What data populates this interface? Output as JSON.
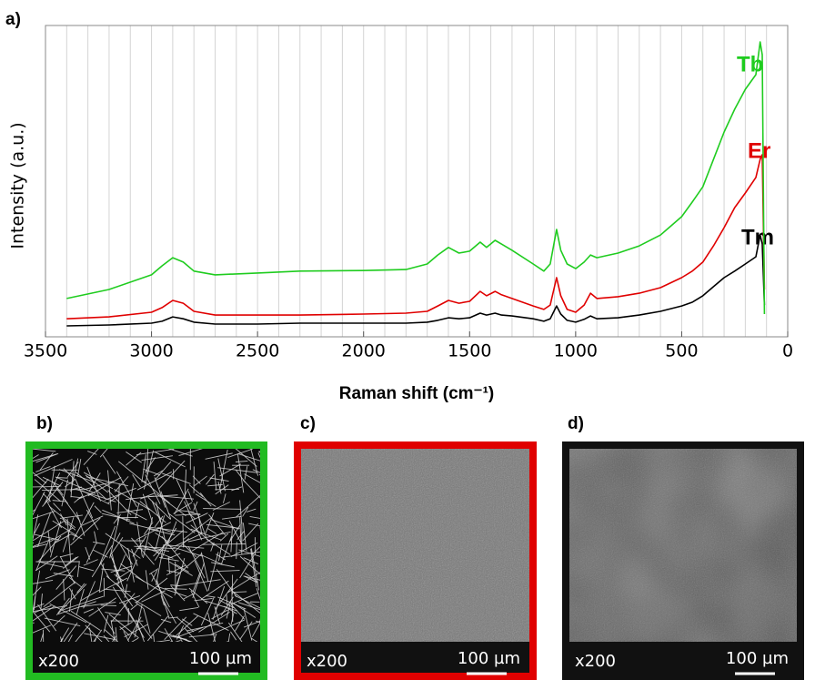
{
  "chart_data": {
    "type": "line",
    "ylabel": "Intensity (a.u.)",
    "xlabel": "Raman shift (cm⁻¹)",
    "xlim": [
      3500,
      0
    ],
    "ylim": [
      0,
      100
    ],
    "xticks": [
      3500,
      3000,
      2500,
      2000,
      1500,
      1000,
      500,
      0
    ],
    "minor_xticks": [
      3400,
      3300,
      3200,
      3100,
      3000,
      2900,
      2800,
      2700,
      2600,
      2500,
      2400,
      2300,
      2200,
      2100,
      2000,
      1900,
      1800,
      1700,
      1600,
      1500,
      1400,
      1300,
      1200,
      1100,
      1000,
      900,
      800,
      700,
      600,
      500,
      400,
      300,
      200,
      100
    ],
    "grid": true,
    "x": [
      3400,
      3200,
      3000,
      2950,
      2900,
      2850,
      2800,
      2700,
      2500,
      2300,
      2000,
      1800,
      1700,
      1650,
      1600,
      1550,
      1500,
      1450,
      1420,
      1380,
      1350,
      1300,
      1200,
      1150,
      1120,
      1090,
      1070,
      1040,
      1000,
      960,
      930,
      900,
      800,
      700,
      600,
      500,
      450,
      400,
      350,
      300,
      250,
      200,
      150,
      130,
      120,
      110
    ],
    "series": [
      {
        "name": "Tm",
        "color": "#000000",
        "values": [
          3.5,
          3.8,
          4.4,
          5.0,
          6.4,
          5.8,
          4.7,
          4.1,
          4.1,
          4.4,
          4.4,
          4.4,
          4.7,
          5.3,
          6.1,
          5.8,
          6.1,
          7.6,
          7.0,
          7.6,
          7.0,
          6.7,
          5.8,
          5.0,
          5.8,
          9.9,
          7.3,
          5.3,
          4.7,
          5.6,
          6.7,
          5.8,
          6.1,
          7.0,
          8.2,
          9.9,
          11.1,
          13.2,
          16.1,
          19.0,
          21.1,
          23.4,
          25.7,
          32.7,
          29.8,
          10.2
        ]
      },
      {
        "name": "Er",
        "color": "#e00000",
        "values": [
          5.8,
          6.4,
          7.9,
          9.4,
          11.7,
          10.8,
          8.2,
          7.0,
          7.0,
          7.0,
          7.3,
          7.6,
          8.2,
          9.9,
          11.7,
          10.8,
          11.4,
          14.6,
          13.2,
          14.6,
          13.5,
          12.3,
          9.9,
          8.8,
          10.2,
          19.0,
          13.2,
          8.8,
          7.9,
          10.2,
          14.0,
          12.3,
          12.9,
          14.0,
          15.8,
          19.0,
          21.1,
          24.0,
          29.2,
          35.1,
          41.5,
          46.2,
          51.2,
          57.0,
          58.5,
          15.2
        ]
      },
      {
        "name": "Tb",
        "color": "#1fcc1f",
        "values": [
          12.3,
          15.2,
          19.9,
          22.8,
          25.4,
          24.0,
          21.1,
          19.9,
          20.5,
          21.1,
          21.3,
          21.6,
          23.4,
          26.3,
          28.7,
          26.9,
          27.5,
          30.4,
          28.7,
          31.0,
          29.8,
          27.8,
          23.4,
          21.1,
          23.4,
          34.5,
          27.8,
          23.4,
          21.9,
          24.0,
          26.3,
          25.4,
          26.9,
          29.2,
          32.7,
          38.6,
          43.3,
          48.2,
          57.0,
          65.8,
          73.1,
          79.5,
          84.2,
          94.7,
          90.6,
          7.3
        ]
      }
    ]
  },
  "panel_labels": [
    "a)",
    "b)",
    "c)",
    "d)"
  ],
  "images": [
    {
      "magnification": "x200",
      "scale": "100 µm"
    },
    {
      "magnification": "x200",
      "scale": "100 µm"
    },
    {
      "magnification": "x200",
      "scale": "100 µm"
    }
  ]
}
